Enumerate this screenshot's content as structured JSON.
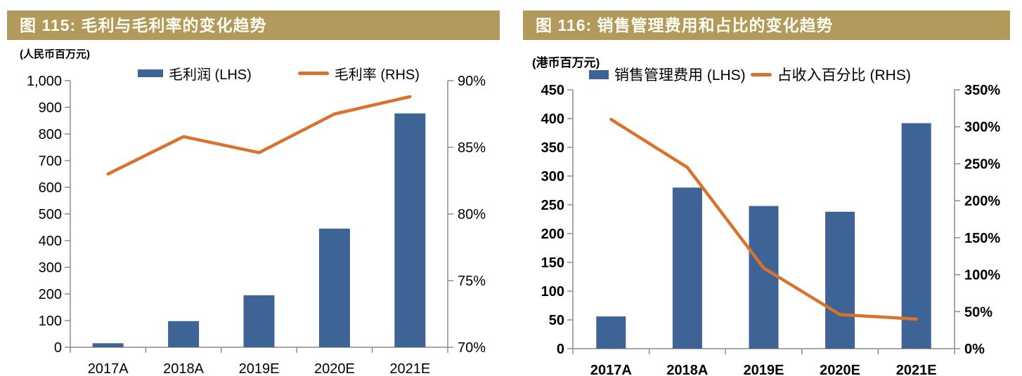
{
  "colors": {
    "header_band": "#B19A5B",
    "header_text": "#FFFDF2",
    "bar_blue": "#3E6395",
    "line_orange": "#D9722D",
    "axis_line": "#8C8C8C",
    "label_text": "#000000"
  },
  "chart_data": [
    {
      "type": "bar+line",
      "title": "图 115: 毛利与毛利率的变化趋势",
      "unit_label": "(人民币百万元)",
      "categories": [
        "2017A",
        "2018A",
        "2019E",
        "2020E",
        "2021E"
      ],
      "series": [
        {
          "name": "毛利润 (LHS)",
          "type": "bar",
          "axis": "left",
          "color": "#3E6395",
          "values": [
            15,
            98,
            195,
            445,
            877
          ]
        },
        {
          "name": "毛利率 (RHS)",
          "type": "line",
          "axis": "right",
          "color": "#D9722D",
          "values": [
            83.0,
            85.8,
            84.6,
            87.5,
            88.8
          ]
        }
      ],
      "left_axis": {
        "min": 0,
        "max": 1000,
        "step": 100,
        "format": "comma",
        "suffix": ""
      },
      "right_axis": {
        "min": 70,
        "max": 90,
        "step": 5,
        "format": "plain",
        "suffix": "%"
      },
      "legend_position": "top",
      "grid": false
    },
    {
      "type": "bar+line",
      "title": "图 116: 销售管理费用和占比的变化趋势",
      "unit_label": "(港币百万元)",
      "categories": [
        "2017A",
        "2018A",
        "2019E",
        "2020E",
        "2021E"
      ],
      "series": [
        {
          "name": "销售管理费用 (LHS)",
          "type": "bar",
          "axis": "left",
          "color": "#3E6395",
          "values": [
            56,
            280,
            248,
            238,
            392
          ]
        },
        {
          "name": "占收入百分比 (RHS)",
          "type": "line",
          "axis": "right",
          "color": "#D9722D",
          "values": [
            310,
            245,
            109,
            46,
            40
          ]
        }
      ],
      "left_axis": {
        "min": 0,
        "max": 450,
        "step": 50,
        "format": "plain",
        "suffix": ""
      },
      "right_axis": {
        "min": 0,
        "max": 350,
        "step": 50,
        "format": "plain",
        "suffix": "%"
      },
      "legend_position": "top",
      "grid": false
    }
  ]
}
